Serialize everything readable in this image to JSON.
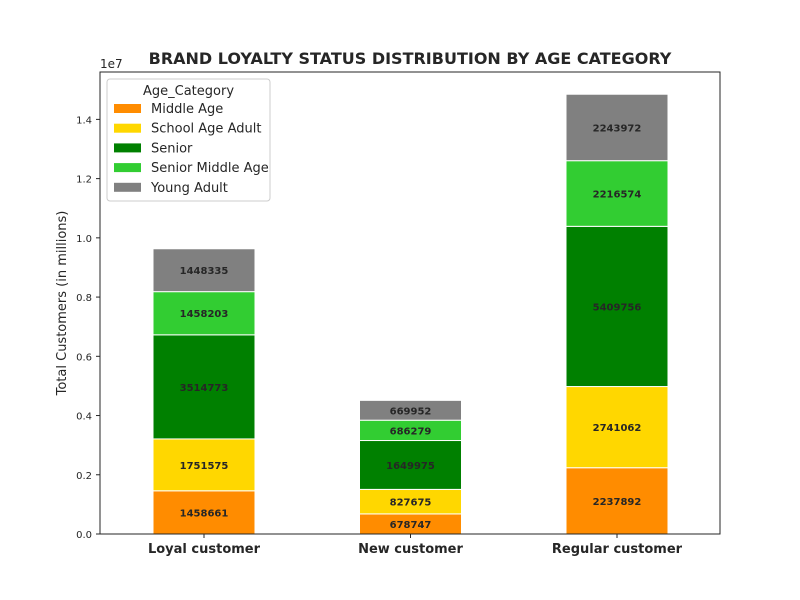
{
  "chart_data": {
    "type": "bar",
    "stacked": true,
    "title": "BRAND LOYALTY STATUS DISTRIBUTION BY AGE CATEGORY",
    "xlabel": "",
    "ylabel": "Total Customers (in millions)",
    "y_offset_label": "1e7",
    "y_scale_factor": 10000000,
    "ylim": [
      0,
      15600000
    ],
    "y_ticks": [
      0,
      2000000,
      4000000,
      6000000,
      8000000,
      10000000,
      12000000,
      14000000
    ],
    "y_tick_labels": [
      "0.0",
      "0.2",
      "0.4",
      "0.6",
      "0.8",
      "1.0",
      "1.2",
      "1.4"
    ],
    "categories": [
      "Loyal customer",
      "New customer",
      "Regular customer"
    ],
    "legend_title": "Age_Category",
    "legend_position": "top-left",
    "grid": false,
    "series": [
      {
        "name": "Middle Age",
        "color": "#FF8C00",
        "values": [
          1458661,
          678747,
          2237892
        ]
      },
      {
        "name": "School Age Adult",
        "color": "#FFD700",
        "values": [
          1751575,
          827675,
          2741062
        ]
      },
      {
        "name": "Senior",
        "color": "#008000",
        "values": [
          3514773,
          1649975,
          5409756
        ]
      },
      {
        "name": "Senior Middle Age",
        "color": "#32CD32",
        "values": [
          1458203,
          686279,
          2216574
        ]
      },
      {
        "name": "Young Adult",
        "color": "#808080",
        "values": [
          1448335,
          669952,
          2243972
        ]
      }
    ]
  }
}
